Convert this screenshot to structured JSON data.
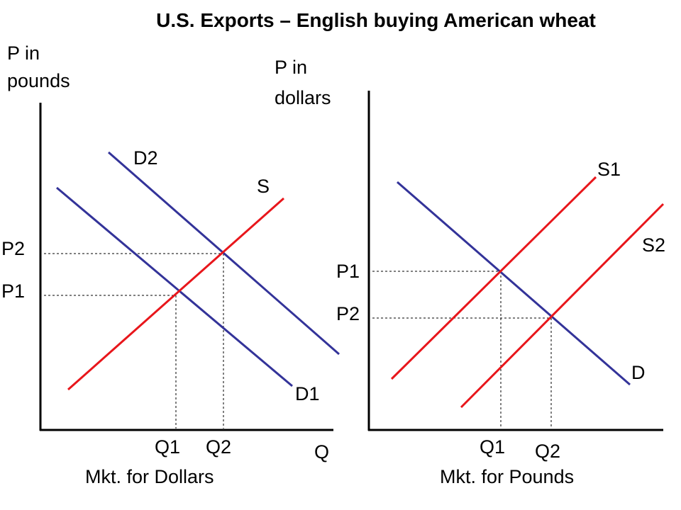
{
  "title": "U.S. Exports – English buying American wheat",
  "left_panel": {
    "y_axis_label": [
      "P in",
      "pounds"
    ],
    "x_axis_label": "Q",
    "caption": "Mkt. for Dollars",
    "curves": {
      "demand_1": "D1",
      "demand_2": "D2",
      "supply": "S"
    },
    "prices": {
      "p1": "P1",
      "p2": "P2"
    },
    "quantities": {
      "q1": "Q1",
      "q2": "Q2"
    }
  },
  "right_panel": {
    "y_axis_label": [
      "P in",
      "dollars"
    ],
    "caption": "Mkt. for Pounds",
    "curves": {
      "demand": "D",
      "supply_1": "S1",
      "supply_2": "S2"
    },
    "prices": {
      "p1": "P1",
      "p2": "P2"
    },
    "quantities": {
      "q1": "Q1",
      "q2": "Q2"
    }
  }
}
